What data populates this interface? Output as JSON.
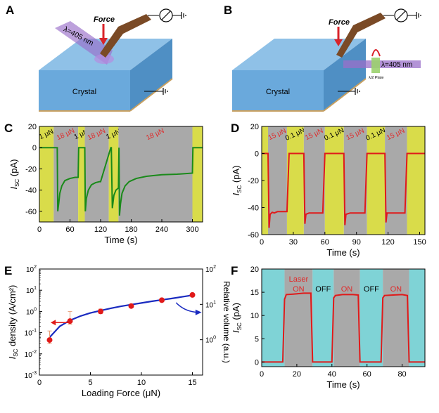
{
  "panels": {
    "A": {
      "letter": "A",
      "force_label": "Force",
      "laser_label": "λ=405 nm",
      "crystal_label": "Crystal"
    },
    "B": {
      "letter": "B",
      "force_label": "Force",
      "laser_label": "λ=405 nm",
      "plate_label": "λ/2 Plate",
      "crystal_label": "Crystal"
    }
  },
  "chart_data": [
    {
      "id": "C",
      "letter": "C",
      "type": "line",
      "xlabel": "Time (s)",
      "ylabel_main": "I",
      "ylabel_sub": "SC",
      "ylabel_unit": " (pA)",
      "xlim": [
        0,
        320
      ],
      "ylim": [
        -70,
        20
      ],
      "xticks": [
        0,
        60,
        120,
        180,
        240,
        300
      ],
      "yticks": [
        20,
        0,
        -20,
        -40,
        -60
      ],
      "series_color": "#1a8a1a",
      "series": [
        {
          "x": [
            0,
            35,
            36,
            38,
            40,
            44,
            50,
            60,
            70,
            76,
            77,
            89,
            90,
            92,
            96,
            102,
            110,
            118,
            120,
            140,
            141,
            143,
            146,
            150,
            155,
            156,
            157,
            159,
            162,
            168,
            176,
            190,
            210,
            240,
            270,
            300,
            301,
            320
          ],
          "y": [
            0,
            0,
            -60,
            -52,
            -43,
            -36,
            -31,
            -29,
            -28,
            -28,
            0,
            0,
            -60,
            -48,
            -40,
            -35,
            -33,
            -32,
            -32,
            0,
            0,
            -57,
            -45,
            -40,
            -38,
            0,
            -64,
            -53,
            -43,
            -36,
            -32,
            -29,
            -27,
            -25.5,
            -25,
            -24,
            0,
            0
          ]
        }
      ],
      "regions": [
        {
          "x0": 0,
          "x1": 28,
          "label": "1 μN",
          "kind": "low"
        },
        {
          "x0": 28,
          "x1": 76,
          "label": "18 μN",
          "kind": "high"
        },
        {
          "x0": 76,
          "x1": 89,
          "label": "1 μN",
          "kind": "low"
        },
        {
          "x0": 89,
          "x1": 136,
          "label": "18 μN",
          "kind": "high"
        },
        {
          "x0": 136,
          "x1": 155,
          "label": "1 μN",
          "kind": "low"
        },
        {
          "x0": 155,
          "x1": 300,
          "label": "18 μN",
          "kind": "high"
        },
        {
          "x0": 300,
          "x1": 320,
          "label": "",
          "kind": "low"
        }
      ]
    },
    {
      "id": "D",
      "letter": "D",
      "type": "line",
      "xlabel": "Time (s)",
      "ylabel_main": "I",
      "ylabel_sub": "SC",
      "ylabel_unit": " (pA)",
      "xlim": [
        0,
        155
      ],
      "ylim": [
        -60,
        20
      ],
      "xticks": [
        0,
        30,
        60,
        90,
        120,
        150
      ],
      "yticks": [
        20,
        0,
        -20,
        -40,
        -60
      ],
      "series_color": "#e01a1a",
      "series": [
        {
          "x": [
            0,
            6,
            7,
            8,
            10,
            12,
            15,
            20,
            24,
            26,
            40,
            41,
            42,
            45,
            50,
            58,
            60,
            78,
            79,
            80,
            84,
            90,
            98,
            100,
            117,
            118,
            119,
            124,
            130,
            136,
            138,
            155
          ],
          "y": [
            0,
            0,
            -55,
            -45,
            -43.5,
            -44,
            -43,
            -43,
            -43,
            0,
            0,
            -52,
            -45,
            -44,
            -44,
            -44,
            0,
            0,
            -53,
            -45,
            -44,
            -44,
            -44,
            0,
            0,
            -51,
            -44,
            -44,
            -44,
            -44,
            0,
            0
          ]
        }
      ],
      "regions": [
        {
          "x0": 0,
          "x1": 6,
          "label": "",
          "kind": "low"
        },
        {
          "x0": 6,
          "x1": 24,
          "label": "15 μN",
          "kind": "high"
        },
        {
          "x0": 24,
          "x1": 40,
          "label": "0.1 μN",
          "kind": "low"
        },
        {
          "x0": 40,
          "x1": 60,
          "label": "15 μN",
          "kind": "high"
        },
        {
          "x0": 60,
          "x1": 78,
          "label": "0.1 μN",
          "kind": "low"
        },
        {
          "x0": 78,
          "x1": 100,
          "label": "15 μN",
          "kind": "high"
        },
        {
          "x0": 100,
          "x1": 117,
          "label": "0.1 μN",
          "kind": "low"
        },
        {
          "x0": 117,
          "x1": 138,
          "label": "15 μN",
          "kind": "high"
        },
        {
          "x0": 138,
          "x1": 155,
          "label": "",
          "kind": "low"
        }
      ]
    },
    {
      "id": "E",
      "letter": "E",
      "type": "scatter",
      "xlabel": "Loading Force (μN)",
      "ylabel_main": "I",
      "ylabel_sub": "SC",
      "ylabel_unit": " density (A/cm²)",
      "y2label": "Relative volume (a.u.)",
      "xlim": [
        0,
        16
      ],
      "ylim_log": [
        -3,
        2
      ],
      "y2lim_log": [
        -1,
        2
      ],
      "xticks": [
        0,
        5,
        10,
        15
      ],
      "yticks_exp": [
        -3,
        -2,
        -1,
        0,
        1,
        2
      ],
      "y2ticks_exp": [
        0,
        1,
        2
      ],
      "points": [
        {
          "x": 1,
          "y": 0.045,
          "err_lo": 0.03,
          "err_hi": 0.12
        },
        {
          "x": 3,
          "y": 0.35,
          "err_lo": 0.25,
          "err_hi": 1.0
        },
        {
          "x": 6,
          "y": 1.0,
          "err_lo": 0.8,
          "err_hi": 1.3
        },
        {
          "x": 9,
          "y": 1.8,
          "err_lo": 1.6,
          "err_hi": 2.0
        },
        {
          "x": 12,
          "y": 3.4,
          "err_lo": 3.1,
          "err_hi": 3.8
        },
        {
          "x": 15,
          "y": 6.0,
          "err_lo": 5.4,
          "err_hi": 6.6
        }
      ],
      "fit_line": {
        "x": [
          1,
          2,
          3,
          4,
          5,
          6,
          7,
          8,
          9,
          10,
          11,
          12,
          13,
          14,
          15
        ],
        "y": [
          0.06,
          0.2,
          0.38,
          0.6,
          0.85,
          1.1,
          1.4,
          1.75,
          2.1,
          2.5,
          3.0,
          3.5,
          4.1,
          4.9,
          5.8
        ]
      },
      "point_color": "#e01a1a",
      "fit_color": "#1a2bc0"
    },
    {
      "id": "F",
      "letter": "F",
      "type": "line",
      "xlabel": "Time (s)",
      "ylabel_main": "I",
      "ylabel_sub": "SC",
      "ylabel_unit": " (pA)",
      "xlim": [
        0,
        93
      ],
      "ylim": [
        -1,
        20
      ],
      "xticks": [
        0,
        20,
        40,
        60,
        80
      ],
      "yticks": [
        0,
        5,
        10,
        15,
        20
      ],
      "series_color": "#e01a1a",
      "series": [
        {
          "x": [
            0,
            12,
            13,
            14,
            18,
            24,
            28,
            29,
            30,
            40,
            41,
            42,
            46,
            52,
            55,
            56,
            57,
            68,
            69,
            70,
            74,
            80,
            83,
            84,
            85,
            93
          ],
          "y": [
            0,
            0,
            13.5,
            14.5,
            14.6,
            14.8,
            14.8,
            0,
            0,
            0,
            13.8,
            14.3,
            14.5,
            14.5,
            14.4,
            0,
            0,
            0,
            13.8,
            14.3,
            14.4,
            14.5,
            14.3,
            0,
            0,
            0
          ]
        }
      ],
      "regions": [
        {
          "x0": 0,
          "x1": 13,
          "label": "",
          "kind": "off"
        },
        {
          "x0": 13,
          "x1": 29,
          "label": "Laser ON",
          "kind": "on"
        },
        {
          "x0": 29,
          "x1": 41,
          "label": "OFF",
          "kind": "off"
        },
        {
          "x0": 41,
          "x1": 56,
          "label": "ON",
          "kind": "on"
        },
        {
          "x0": 56,
          "x1": 69,
          "label": "OFF",
          "kind": "off"
        },
        {
          "x0": 69,
          "x1": 84,
          "label": "ON",
          "kind": "on"
        },
        {
          "x0": 84,
          "x1": 93,
          "label": "",
          "kind": "off"
        }
      ]
    }
  ],
  "colors": {
    "gray_region": "#a9a9a9",
    "yellow_region": "#d9dc4a",
    "cyan_region": "#7fd3d6",
    "crystal_top": "#8fc1e7",
    "crystal_side": "#4f8fc4",
    "crystal_front": "#6aa9dc",
    "laser_purple": "#9a6fc9",
    "tip_brown": "#7a4a26",
    "force_red": "#d9232a",
    "high_label_red": "#e02a2a"
  }
}
